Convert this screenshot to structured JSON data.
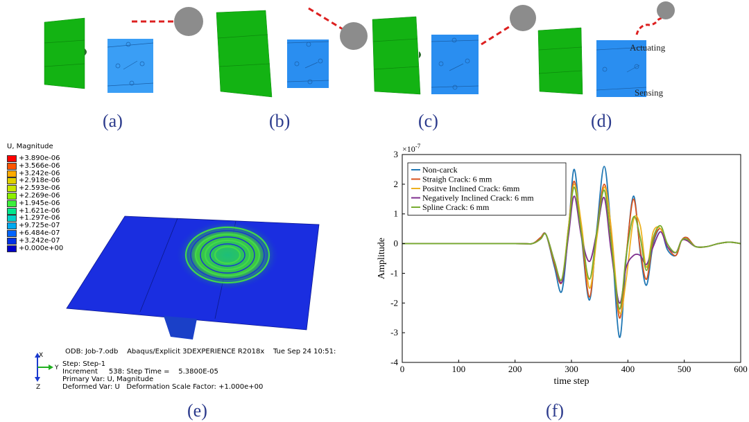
{
  "panels": {
    "a": "(a)",
    "b": "(b)",
    "c": "(c)",
    "d": "(d)",
    "e": "(e)",
    "f": "(f)"
  },
  "top_labels": {
    "actuating": "Actuating",
    "sensing": "Sensing"
  },
  "fem": {
    "legend_title": "U, Magnitude",
    "legend_values": [
      "+3.890e-06",
      "+3.566e-06",
      "+3.242e-06",
      "+2.918e-06",
      "+2.593e-06",
      "+2.269e-06",
      "+1.945e-06",
      "+1.621e-06",
      "+1.297e-06",
      "+9.725e-07",
      "+6.484e-07",
      "+3.242e-07",
      "+0.000e+00"
    ],
    "legend_colors": [
      "#ff0000",
      "#ff5500",
      "#ffaa00",
      "#e0d000",
      "#c8e600",
      "#8cf000",
      "#3cf03c",
      "#00e68c",
      "#00d2c8",
      "#00aaf0",
      "#0064ff",
      "#0032e6",
      "#0000c8"
    ],
    "odb_line": "ODB: Job-7.odb    Abaqus/Explicit 3DEXPERIENCE R2018x    Tue Sep 24 10:51:",
    "step_line": "Step: Step-1",
    "increment_line": "Increment     538: Step Time =    5.3800E-05",
    "primary_line": "Primary Var: U, Magnitude",
    "deformed_line": "Deformed Var: U   Deformation Scale Factor: +1.000e+00",
    "axis_x": "X",
    "axis_y": "Y",
    "axis_z": "Z"
  },
  "chart_data": {
    "type": "line",
    "xlabel": "time step",
    "ylabel": "Amplitude",
    "exponent_label": "×10",
    "exponent_power": "-7",
    "xlim": [
      0,
      600
    ],
    "ylim": [
      -4,
      3
    ],
    "xticks": [
      0,
      100,
      200,
      300,
      400,
      500,
      600
    ],
    "yticks": [
      -4,
      -3,
      -2,
      -1,
      0,
      1,
      2,
      3
    ],
    "legend_position": "top-left",
    "series": [
      {
        "name": "Non-carck",
        "color": "#1f77b4",
        "x": [
          0,
          200,
          230,
          245,
          255,
          270,
          283,
          295,
          305,
          318,
          332,
          345,
          358,
          370,
          385,
          397,
          410,
          422,
          433,
          445,
          458,
          470,
          485,
          495,
          505,
          520,
          540,
          560,
          580,
          600
        ],
        "y": [
          0,
          0,
          0,
          0.2,
          0.3,
          -0.8,
          -1.6,
          0.5,
          2.5,
          0.2,
          -1.9,
          0.5,
          2.6,
          0.5,
          -3.15,
          -0.5,
          1.6,
          -0.3,
          -1.4,
          0,
          0.5,
          -0.2,
          -0.4,
          0.1,
          0.2,
          -0.1,
          -0.1,
          0,
          0.05,
          0
        ]
      },
      {
        "name": "Straigh Crack: 6 mm",
        "color": "#d9541e",
        "x": [
          0,
          200,
          230,
          245,
          255,
          270,
          283,
          295,
          305,
          318,
          332,
          345,
          358,
          370,
          385,
          397,
          410,
          422,
          433,
          445,
          458,
          470,
          485,
          495,
          505,
          520,
          540,
          560,
          580,
          600
        ],
        "y": [
          0,
          0,
          0,
          0.2,
          0.3,
          -0.7,
          -1.3,
          0.6,
          2.1,
          0.3,
          -1.8,
          0.4,
          2.0,
          0.5,
          -2.5,
          -0.4,
          1.5,
          -0.2,
          -1.2,
          0.1,
          0.5,
          -0.1,
          -0.4,
          0.1,
          0.2,
          -0.1,
          -0.1,
          0,
          0.05,
          0
        ]
      },
      {
        "name": "Positve Inclined Crack: 6mm",
        "color": "#edb120",
        "x": [
          0,
          200,
          230,
          245,
          255,
          270,
          283,
          295,
          305,
          318,
          332,
          345,
          358,
          370,
          385,
          397,
          410,
          422,
          433,
          445,
          458,
          470,
          485,
          495,
          505,
          520,
          540,
          560,
          580,
          600
        ],
        "y": [
          0,
          0,
          0,
          0.15,
          0.3,
          -0.6,
          -1.2,
          0.6,
          2.0,
          0.6,
          -1.5,
          0.2,
          1.9,
          0.6,
          -2.3,
          -1.2,
          0.8,
          0.6,
          -0.8,
          0.4,
          0.5,
          -0.1,
          -0.3,
          0.1,
          0.1,
          -0.1,
          -0.1,
          0,
          0.05,
          0
        ]
      },
      {
        "name": "Negatively Inclined Crack: 6 mm",
        "color": "#7e2f8e",
        "x": [
          0,
          200,
          230,
          245,
          255,
          270,
          283,
          295,
          305,
          318,
          332,
          345,
          358,
          370,
          385,
          397,
          410,
          422,
          433,
          445,
          458,
          470,
          485,
          495,
          505,
          520,
          540,
          560,
          580,
          600
        ],
        "y": [
          0,
          0,
          0,
          0.15,
          0.3,
          -0.6,
          -1.3,
          0.3,
          1.6,
          0.2,
          -0.6,
          0.4,
          1.55,
          -0.2,
          -2.0,
          -0.8,
          -0.4,
          -0.4,
          -0.7,
          -0.1,
          0.4,
          -0.1,
          -0.3,
          0.1,
          0.1,
          -0.1,
          -0.1,
          0,
          0.05,
          0
        ]
      },
      {
        "name": "Spline Crack: 6 mm",
        "color": "#77ac30",
        "x": [
          0,
          200,
          230,
          245,
          255,
          270,
          283,
          295,
          305,
          318,
          332,
          345,
          358,
          370,
          385,
          397,
          410,
          422,
          433,
          445,
          458,
          470,
          485,
          495,
          505,
          520,
          540,
          560,
          580,
          600
        ],
        "y": [
          0,
          0,
          0,
          0.15,
          0.3,
          -0.6,
          -1.2,
          0.5,
          1.9,
          0.3,
          -1.2,
          0.4,
          1.8,
          0.1,
          -2.2,
          -0.4,
          0.9,
          0.2,
          -0.9,
          0.2,
          0.6,
          0,
          -0.3,
          0.1,
          0.15,
          -0.1,
          -0.1,
          0,
          0.05,
          0
        ]
      }
    ]
  }
}
